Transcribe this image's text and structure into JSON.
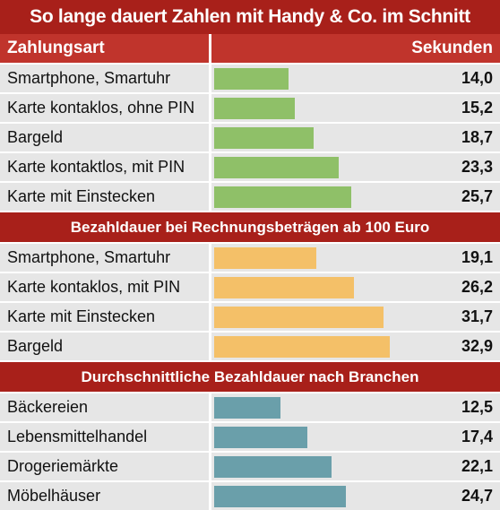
{
  "title": "So lange dauert Zahlen mit Handy & Co. im Schnitt",
  "header": {
    "category": "Zahlungsart",
    "value": "Sekunden"
  },
  "colors": {
    "green": "#8fc068",
    "orange": "#f4c068",
    "teal": "#6a9faa",
    "red": "#a8201a"
  },
  "chart_data": {
    "type": "bar",
    "orientation": "horizontal",
    "value_range": [
      0,
      40
    ],
    "groups": [
      {
        "name": "",
        "color": "#8fc068",
        "categories": [
          "Smartphone, Smartuhr",
          "Karte kontaklos, ohne PIN",
          "Bargeld",
          "Karte kontaktlos, mit PIN",
          "Karte mit Einstecken"
        ],
        "values": [
          14.0,
          15.2,
          18.7,
          23.3,
          25.7
        ],
        "labels": [
          "14,0",
          "15,2",
          "18,7",
          "23,3",
          "25,7"
        ]
      },
      {
        "name": "Bezahldauer bei Rechnungsbeträgen ab 100 Euro",
        "color": "#f4c068",
        "categories": [
          "Smartphone, Smartuhr",
          "Karte kontaklos, mit PIN",
          "Karte mit Einstecken",
          "Bargeld"
        ],
        "values": [
          19.1,
          26.2,
          31.7,
          32.9
        ],
        "labels": [
          "19,1",
          "26,2",
          "31,7",
          "32,9"
        ]
      },
      {
        "name": "Durchschnittliche Bezahldauer nach Branchen",
        "color": "#6a9faa",
        "categories": [
          "Bäckereien",
          "Lebensmittelhandel",
          "Drogeriemärkte",
          "Möbelhäuser"
        ],
        "values": [
          12.5,
          17.4,
          22.1,
          24.7
        ],
        "labels": [
          "12,5",
          "17,4",
          "22,1",
          "24,7"
        ]
      }
    ]
  }
}
